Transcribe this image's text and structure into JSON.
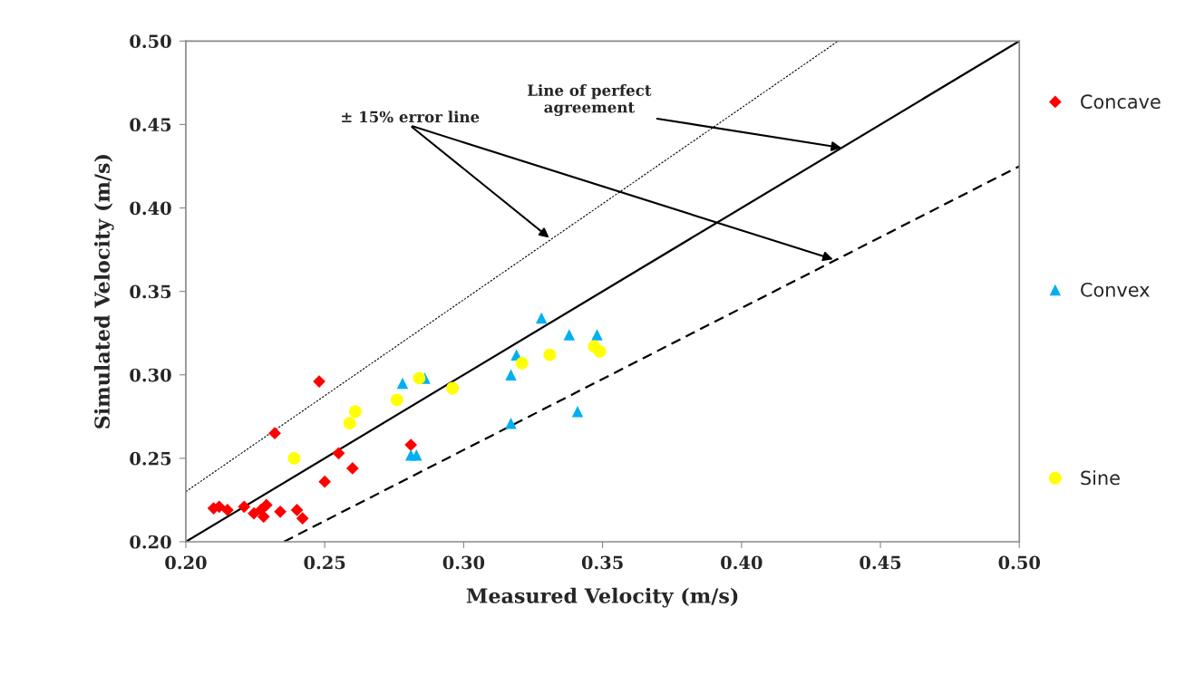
{
  "chart_data": {
    "type": "scatter",
    "xlabel": "Measured Velocity (m/s)",
    "ylabel": "Simulated Velocity (m/s)",
    "xlim": [
      0.2,
      0.5
    ],
    "ylim": [
      0.2,
      0.5
    ],
    "xticks": [
      {
        "value": 0.2,
        "label": "0.20"
      },
      {
        "value": 0.25,
        "label": "0.25"
      },
      {
        "value": 0.3,
        "label": "0.30"
      },
      {
        "value": 0.35,
        "label": "0.35"
      },
      {
        "value": 0.4,
        "label": "0.40"
      },
      {
        "value": 0.45,
        "label": "0.45"
      },
      {
        "value": 0.5,
        "label": "0.50"
      }
    ],
    "yticks": [
      {
        "value": 0.2,
        "label": "0.20"
      },
      {
        "value": 0.25,
        "label": "0.25"
      },
      {
        "value": 0.3,
        "label": "0.30"
      },
      {
        "value": 0.35,
        "label": "0.35"
      },
      {
        "value": 0.4,
        "label": "0.40"
      },
      {
        "value": 0.45,
        "label": "0.45"
      },
      {
        "value": 0.5,
        "label": "0.50"
      }
    ],
    "grid": false,
    "legend": "right",
    "series": [
      {
        "name": "Concave",
        "color": "#ff0000",
        "marker": "diamond",
        "x": [
          0.21,
          0.212,
          0.215,
          0.221,
          0.2245,
          0.227,
          0.229,
          0.228,
          0.234,
          0.24,
          0.242,
          0.232,
          0.248,
          0.255,
          0.26,
          0.25,
          0.281
        ],
        "values": [
          0.22,
          0.221,
          0.219,
          0.221,
          0.217,
          0.219,
          0.222,
          0.215,
          0.218,
          0.219,
          0.214,
          0.265,
          0.296,
          0.253,
          0.244,
          0.236,
          0.258
        ]
      },
      {
        "name": "Convex",
        "color": "#00b0f0",
        "marker": "triangle",
        "x": [
          0.328,
          0.338,
          0.348,
          0.319,
          0.317,
          0.278,
          0.286,
          0.317,
          0.341,
          0.281,
          0.283
        ],
        "values": [
          0.334,
          0.324,
          0.324,
          0.312,
          0.3,
          0.295,
          0.298,
          0.271,
          0.278,
          0.252,
          0.252
        ]
      },
      {
        "name": "Sine",
        "color": "#ffff00",
        "marker": "circle",
        "x": [
          0.239,
          0.259,
          0.261,
          0.276,
          0.284,
          0.296,
          0.321,
          0.331,
          0.347,
          0.349
        ],
        "values": [
          0.25,
          0.271,
          0.278,
          0.285,
          0.298,
          0.292,
          0.307,
          0.312,
          0.317,
          0.314
        ]
      },
      {
        "type": "line",
        "color": "#000000",
        "line_style": "dotted",
        "x": [
          0.2,
          0.4348
        ],
        "values": [
          0.23,
          0.5
        ]
      },
      {
        "type": "line",
        "color": "#000000",
        "line_style": "solid",
        "x": [
          0.2,
          0.5
        ],
        "values": [
          0.2,
          0.5
        ]
      },
      {
        "type": "line",
        "color": "#000000",
        "line_style": "dashed",
        "x": [
          0.2353,
          0.5
        ],
        "values": [
          0.2,
          0.425
        ]
      }
    ],
    "annotations": [
      {
        "text": "Line of perfect agreement",
        "x": 0.436,
        "y": 0.436
      },
      "± 15% error line"
    ]
  }
}
